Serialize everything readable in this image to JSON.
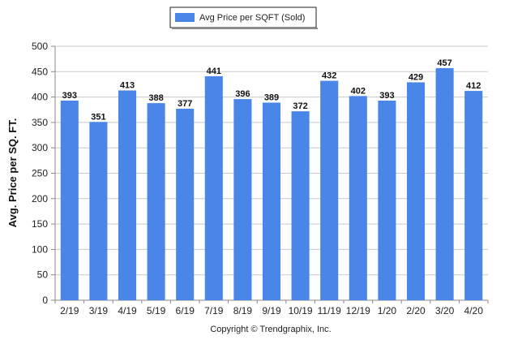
{
  "chart_data": {
    "type": "bar",
    "categories": [
      "2/19",
      "3/19",
      "4/19",
      "5/19",
      "6/19",
      "7/19",
      "8/19",
      "9/19",
      "10/19",
      "11/19",
      "12/19",
      "1/20",
      "2/20",
      "3/20",
      "4/20"
    ],
    "series": [
      {
        "name": "Avg Price per SQFT (Sold)",
        "values": [
          393,
          351,
          413,
          388,
          377,
          441,
          396,
          389,
          372,
          432,
          402,
          393,
          429,
          457,
          412
        ],
        "color": "#4a86e8"
      }
    ],
    "ylabel": "Avg. Price per SQ. FT.",
    "xlabel": "",
    "ylim": [
      0,
      500
    ],
    "yticks": [
      0,
      50,
      100,
      150,
      200,
      250,
      300,
      350,
      400,
      450,
      500
    ],
    "grid": true,
    "legend_position": "top-center",
    "data_labels": true
  },
  "footer": {
    "copyright": "Copyright © Trendgraphix, Inc."
  }
}
